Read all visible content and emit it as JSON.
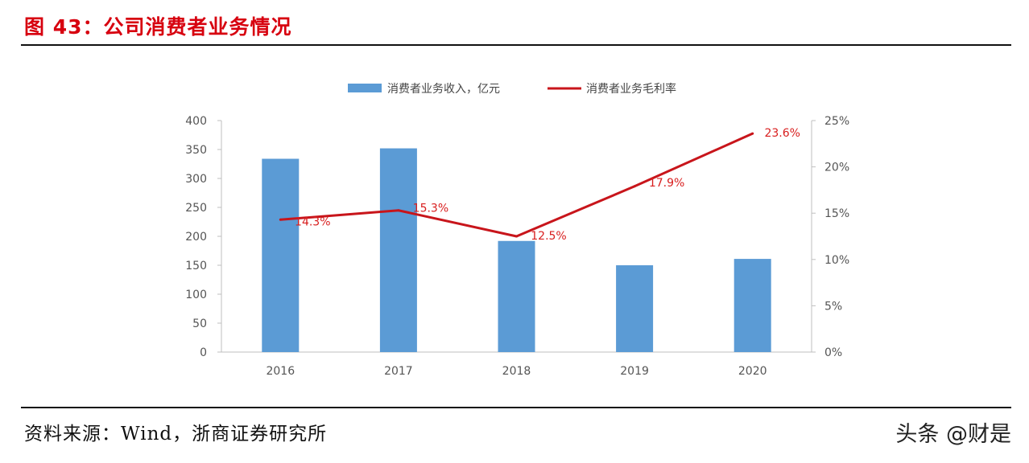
{
  "figure": {
    "title": "图 43：公司消费者业务情况",
    "source": "资料来源：Wind，浙商证券研究所",
    "watermark": "头条 @财是"
  },
  "colors": {
    "bar": "#5b9bd5",
    "line": "#c8151b",
    "title": "#d7000f"
  },
  "chart_data": {
    "type": "bar+line",
    "categories": [
      "2016",
      "2017",
      "2018",
      "2019",
      "2020"
    ],
    "series": [
      {
        "name": "消费者业务收入，亿元",
        "type": "bar",
        "axis": "left",
        "values": [
          334,
          352,
          192,
          150,
          161
        ]
      },
      {
        "name": "消费者业务毛利率",
        "type": "line",
        "axis": "right",
        "values": [
          14.3,
          15.3,
          12.5,
          17.9,
          23.6
        ],
        "labels": [
          "14.3%",
          "15.3%",
          "12.5%",
          "17.9%",
          "23.6%"
        ]
      }
    ],
    "ylim_left": [
      0,
      400
    ],
    "yticks_left": [
      "0",
      "50",
      "100",
      "150",
      "200",
      "250",
      "300",
      "350",
      "400"
    ],
    "ylim_right": [
      0,
      25
    ],
    "yticks_right": [
      "0%",
      "5%",
      "10%",
      "15%",
      "20%",
      "25%"
    ],
    "legend_position": "top-center",
    "grid": false
  }
}
